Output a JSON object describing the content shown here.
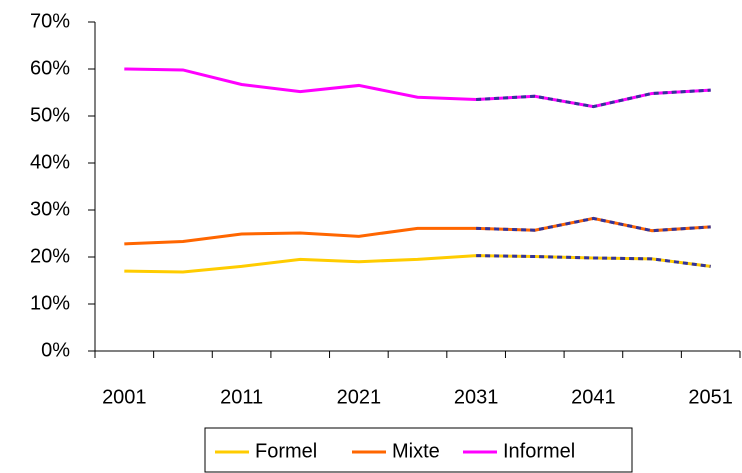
{
  "chart_data": {
    "type": "line",
    "categories": [
      "2001",
      null,
      "2011",
      null,
      "2021",
      null,
      "2031",
      null,
      "2041",
      null,
      "2051"
    ],
    "series": [
      {
        "name": "Formel",
        "color": "#ffcc00",
        "values": [
          17,
          16.8,
          18,
          19.5,
          19,
          19.5,
          20.3,
          20.1,
          19.8,
          19.6,
          18
        ]
      },
      {
        "name": "Mixte",
        "color": "#ff6600",
        "values": [
          22.8,
          23.3,
          24.9,
          25.1,
          24.4,
          26.1,
          26.1,
          25.7,
          28.2,
          25.6,
          26.4
        ]
      },
      {
        "name": "Informel",
        "color": "#ff00ff",
        "values": [
          60,
          59.8,
          56.7,
          55.2,
          56.5,
          54,
          53.5,
          54.2,
          52,
          54.8,
          55.5
        ]
      }
    ],
    "dashed_from_index": 6,
    "dash_color": "#333399",
    "ylim": [
      0,
      70
    ],
    "yticks": [
      {
        "value": 0,
        "label": "0%"
      },
      {
        "value": 10,
        "label": "10%"
      },
      {
        "value": 20,
        "label": "20%"
      },
      {
        "value": 30,
        "label": "30%"
      },
      {
        "value": 40,
        "label": "40%"
      },
      {
        "value": 50,
        "label": "50%"
      },
      {
        "value": 60,
        "label": "60%"
      },
      {
        "value": 70,
        "label": "70%"
      }
    ],
    "legend": "bottom"
  }
}
